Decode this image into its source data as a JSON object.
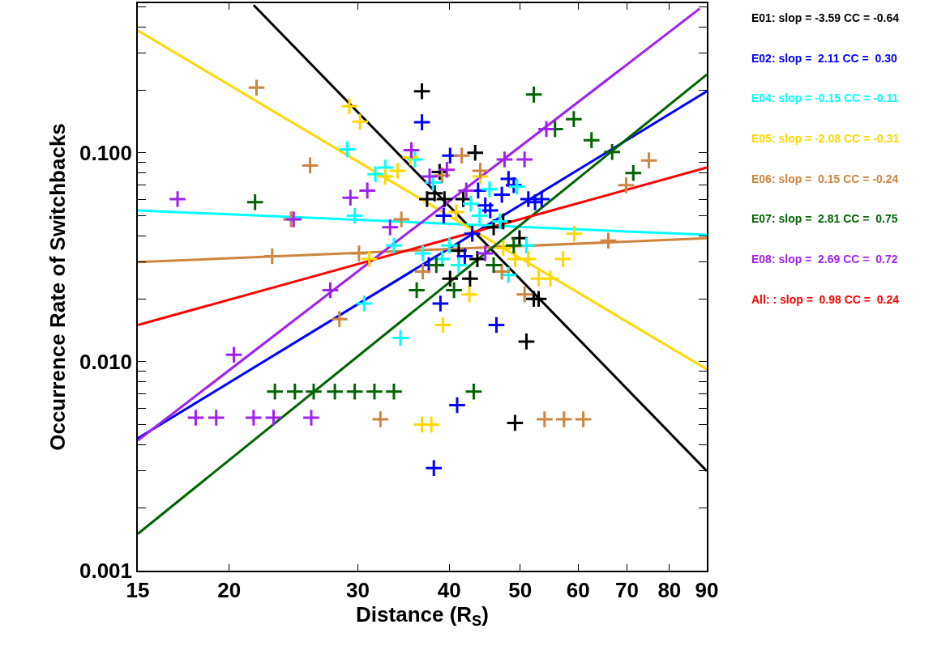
{
  "chart_data": {
    "type": "scatter",
    "xlabel": "Distance (R$_{S}$)",
    "ylabel": "Occurrence Rate of Switchbacks",
    "log": "xy",
    "grid": false,
    "legend": "right",
    "marker": "cross",
    "xlim": [
      15,
      90
    ],
    "ylim": [
      0.001,
      0.52
    ],
    "xticks": [
      15,
      20,
      30,
      40,
      50,
      60,
      70,
      80,
      90
    ],
    "yticks": [
      {
        "value": 0.001,
        "label": "0.001"
      },
      {
        "value": 0.002,
        "label": null
      },
      {
        "value": 0.003,
        "label": null
      },
      {
        "value": 0.004,
        "label": null
      },
      {
        "value": 0.005,
        "label": null
      },
      {
        "value": 0.006,
        "label": null
      },
      {
        "value": 0.007,
        "label": null
      },
      {
        "value": 0.008,
        "label": null
      },
      {
        "value": 0.009,
        "label": null
      },
      {
        "value": 0.01,
        "label": "0.010"
      },
      {
        "value": 0.02,
        "label": null
      },
      {
        "value": 0.03,
        "label": null
      },
      {
        "value": 0.04,
        "label": null
      },
      {
        "value": 0.05,
        "label": null
      },
      {
        "value": 0.06,
        "label": null
      },
      {
        "value": 0.07,
        "label": null
      },
      {
        "value": 0.08,
        "label": null
      },
      {
        "value": 0.09,
        "label": null
      },
      {
        "value": 0.1,
        "label": "0.100"
      },
      {
        "value": 0.2,
        "label": null
      },
      {
        "value": 0.3,
        "label": null
      },
      {
        "value": 0.4,
        "label": null
      },
      {
        "value": 0.5,
        "label": null
      }
    ],
    "series": [
      {
        "color": "#000000",
        "x": [
          36.7,
          38.8,
          43.4,
          38.2,
          37.3,
          39.4,
          41.8,
          47.4,
          46,
          49.9,
          41.2,
          43.7,
          40.1,
          42.7,
          52.2,
          53,
          51,
          49.2
        ],
        "values": [
          0.197,
          0.081,
          0.1,
          0.064,
          0.06,
          0.06,
          0.06,
          0.047,
          0.044,
          0.039,
          0.034,
          0.031,
          0.025,
          0.025,
          0.02,
          0.02,
          0.0125,
          0.0051
        ]
      },
      {
        "color": "#0000ff",
        "x": [
          36.7,
          40.1,
          48.2,
          49,
          47.2,
          43.8,
          44.8,
          45.5,
          51.3,
          52.4,
          53.5,
          39.3,
          43,
          42,
          37.5,
          38.9,
          46.4,
          41,
          38.1
        ],
        "values": [
          0.14,
          0.097,
          0.075,
          0.07,
          0.063,
          0.066,
          0.056,
          0.053,
          0.06,
          0.058,
          0.06,
          0.05,
          0.041,
          0.032,
          0.029,
          0.019,
          0.015,
          0.0062,
          0.0031
        ]
      },
      {
        "color": "#00ffff",
        "x": [
          29.0,
          35.9,
          32.7,
          31.7,
          38,
          49.5,
          45.4,
          42.8,
          44,
          29.7,
          46.9,
          33.6,
          40,
          36.8,
          39.1,
          41.2,
          51,
          48.2,
          30.6,
          34.3
        ],
        "values": [
          0.104,
          0.093,
          0.085,
          0.079,
          0.072,
          0.069,
          0.067,
          0.057,
          0.05,
          0.05,
          0.047,
          0.036,
          0.036,
          0.033,
          0.031,
          0.029,
          0.036,
          0.026,
          0.019,
          0.013
        ]
      },
      {
        "color": "#ffd700",
        "x": [
          29.2,
          30.2,
          35.4,
          34,
          32.7,
          44.1,
          40.9,
          47.4,
          31.1,
          49.2,
          51.3,
          42.6,
          59.3,
          57.2,
          53,
          55,
          39.2,
          36.7,
          37.8
        ],
        "values": [
          0.167,
          0.141,
          0.095,
          0.082,
          0.077,
          0.077,
          0.052,
          0.035,
          0.031,
          0.031,
          0.031,
          0.021,
          0.041,
          0.031,
          0.025,
          0.025,
          0.015,
          0.005,
          0.005
        ]
      },
      {
        "color": "#cd853f",
        "x": [
          21.8,
          25.8,
          24.3,
          22.9,
          41.6,
          44.1,
          39.1,
          34.4,
          30.1,
          36.8,
          47.2,
          50.7,
          75,
          69.8,
          66,
          28.3,
          32.2,
          54,
          57.4,
          61
        ],
        "values": [
          0.205,
          0.087,
          0.048,
          0.032,
          0.097,
          0.082,
          0.078,
          0.048,
          0.033,
          0.027,
          0.027,
          0.021,
          0.092,
          0.07,
          0.038,
          0.016,
          0.0053,
          0.0053,
          0.0053,
          0.0053
        ]
      },
      {
        "color": "#006400",
        "x": [
          21.7,
          52.2,
          49,
          38.4,
          46,
          36.1,
          40.6,
          59.2,
          55.8,
          62.6,
          66.8,
          71.4,
          23.1,
          24.6,
          26.1,
          27.9,
          29.7,
          31.6,
          33.6,
          43.2
        ],
        "values": [
          0.058,
          0.19,
          0.036,
          0.029,
          0.029,
          0.022,
          0.022,
          0.145,
          0.13,
          0.115,
          0.101,
          0.08,
          0.0072,
          0.0072,
          0.0072,
          0.0072,
          0.0072,
          0.0072,
          0.0072,
          0.0072
        ]
      },
      {
        "color": "#a020f0",
        "x": [
          17,
          24.5,
          27.5,
          35.5,
          39.7,
          37.6,
          30.9,
          29.3,
          47.6,
          50.7,
          42.2,
          33.2,
          44.8,
          54.3,
          20.3,
          18.0,
          19.2,
          21.6,
          23.0,
          25.9
        ],
        "values": [
          0.06,
          0.048,
          0.022,
          0.103,
          0.083,
          0.077,
          0.066,
          0.061,
          0.093,
          0.093,
          0.066,
          0.044,
          0.033,
          0.13,
          0.0108,
          0.0054,
          0.0054,
          0.0054,
          0.0054,
          0.0054
        ]
      },
      {
        "type": "line",
        "marker": "none",
        "name": "E01: slop = -3.59 CC = -0.64",
        "color": "#000000",
        "x": [
          21.6,
          90
        ],
        "values": [
          0.51,
          0.003
        ]
      },
      {
        "type": "line",
        "marker": "none",
        "name": "E02: slop =  2.11 CC =  0.30",
        "color": "#0000ff",
        "x": [
          15,
          90
        ],
        "values": [
          0.0043,
          0.197
        ]
      },
      {
        "type": "line",
        "marker": "none",
        "name": "E04: slop = -0.15 CC = -0.11",
        "color": "#00ffff",
        "x": [
          15,
          90
        ],
        "values": [
          0.053,
          0.0405
        ]
      },
      {
        "type": "line",
        "marker": "none",
        "name": "E05: slop = -2.08 CC = -0.31",
        "color": "#ffd700",
        "x": [
          15,
          90
        ],
        "values": [
          0.385,
          0.0092
        ]
      },
      {
        "type": "line",
        "marker": "none",
        "name": "E06: slop =  0.15 CC = -0.24",
        "color": "#cd853f",
        "x": [
          15,
          90
        ],
        "values": [
          0.03,
          0.039
        ]
      },
      {
        "type": "line",
        "marker": "none",
        "name": "E07: slop =  2.81 CC =  0.75",
        "color": "#006400",
        "x": [
          15,
          90
        ],
        "values": [
          0.0015,
          0.237
        ]
      },
      {
        "type": "line",
        "marker": "none",
        "name": "E08: slop =  2.69 CC =  0.72",
        "color": "#a020f0",
        "x": [
          15,
          88
        ],
        "values": [
          0.0042,
          0.49
        ]
      },
      {
        "type": "line",
        "marker": "none",
        "name": "All: : slop =  0.98 CC =  0.24",
        "color": "#ff0000",
        "x": [
          15,
          90
        ],
        "values": [
          0.015,
          0.085
        ]
      }
    ]
  }
}
